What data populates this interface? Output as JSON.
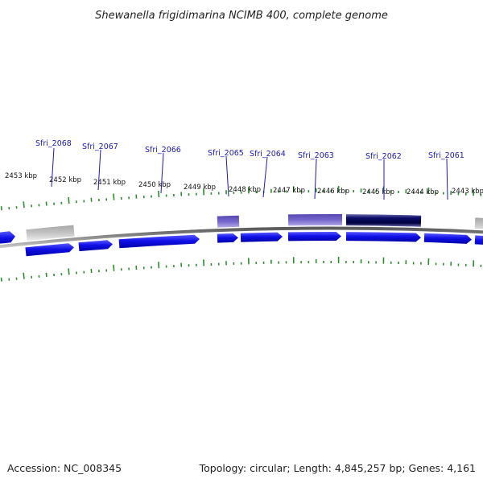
{
  "title": "Shewanella frigidimarina NCIMB 400, complete genome",
  "footer": {
    "accession": "Accession: NC_008345",
    "summary": "Topology: circular; Length: 4,845,257 bp; Genes: 4,161"
  },
  "colors": {
    "background": "#ffffff",
    "text": "#222222",
    "gene_label": "#1a1ab8",
    "tick": "#2e8b2e",
    "backbone": "#8a8a8a",
    "feature_blue": "#1010e8",
    "feature_gray": "#c4c4c4",
    "feature_purple": "#7466cc",
    "feature_navy": "#0c0c66"
  },
  "kbp_labels": [
    "2453 kbp",
    "2452 kbp",
    "2451 kbp",
    "2450 kbp",
    "2449 kbp",
    "2448 kbp",
    "2447 kbp",
    "2446 kbp",
    "2445 kbp",
    "2444 kbp",
    "2443 kbp"
  ],
  "gene_labels": [
    "Sfri_2068",
    "Sfri_2067",
    "Sfri_2066",
    "Sfri_2065",
    "Sfri_2064",
    "Sfri_2063",
    "Sfri_2062",
    "Sfri_2061"
  ]
}
